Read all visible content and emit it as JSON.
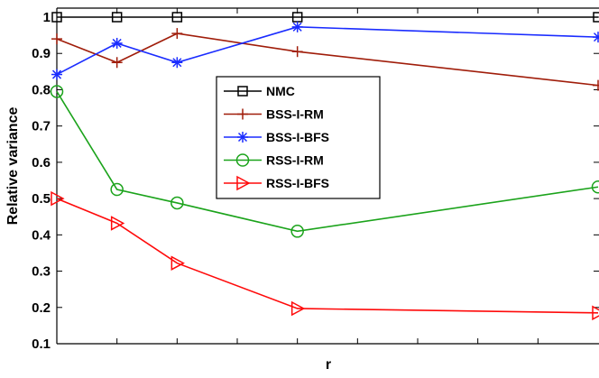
{
  "chart_data": {
    "type": "line",
    "xlabel": "r",
    "ylabel": "Relative variance",
    "ylim": [
      0.1,
      1.0
    ],
    "y_ticks": [
      "0.1",
      "0.2",
      "0.3",
      "0.4",
      "0.5",
      "0.6",
      "0.7",
      "0.8",
      "0.9",
      "1"
    ],
    "x_ticks_labeled": false,
    "xlim": [
      1,
      10
    ],
    "x_minor_ticks": [
      2,
      3,
      4,
      5,
      6,
      7,
      8,
      9
    ],
    "grid": false,
    "legend_position": "center",
    "series": [
      {
        "name": "NMC",
        "color": "#000000",
        "marker": "square",
        "x": [
          1,
          2,
          3,
          5,
          10
        ],
        "values": [
          1.0,
          1.0,
          1.0,
          1.0,
          1.0
        ]
      },
      {
        "name": "BSS-I-RM",
        "color": "#a01d0a",
        "marker": "plus",
        "x": [
          1,
          2,
          3,
          5,
          10
        ],
        "values": [
          0.94,
          0.875,
          0.955,
          0.905,
          0.812
        ]
      },
      {
        "name": "BSS-I-BFS",
        "color": "#1a2cff",
        "marker": "asterisk",
        "x": [
          1,
          2,
          3,
          5,
          10
        ],
        "values": [
          0.842,
          0.928,
          0.875,
          0.973,
          0.945
        ]
      },
      {
        "name": "RSS-I-RM",
        "color": "#1ba31b",
        "marker": "circle",
        "x": [
          1,
          2,
          3,
          5,
          10
        ],
        "values": [
          0.795,
          0.525,
          0.488,
          0.41,
          0.532
        ]
      },
      {
        "name": "RSS-I-BFS",
        "color": "#ff0a0a",
        "marker": "triangle-right",
        "x": [
          1,
          2,
          3,
          5,
          10
        ],
        "values": [
          0.5,
          0.432,
          0.322,
          0.197,
          0.185
        ]
      }
    ]
  }
}
